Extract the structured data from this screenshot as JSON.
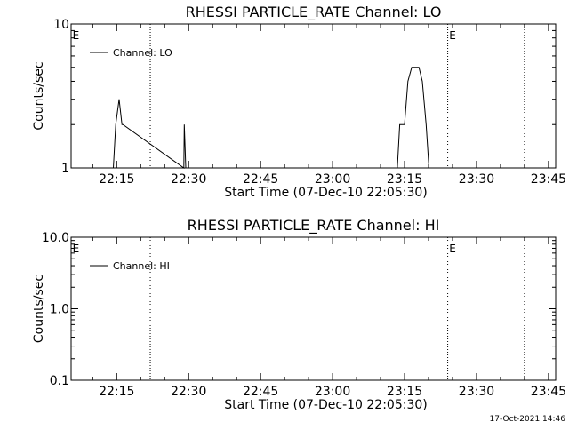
{
  "footer_timestamp": "17-Oct-2021 14:46",
  "chart_data": [
    {
      "type": "line",
      "title": "RHESSI PARTICLE_RATE Channel: LO",
      "xlabel": "Start Time (07-Dec-10 22:05:30)",
      "ylabel": "Counts/sec",
      "x_units": "minutes since 22:05:30",
      "xlim": [
        0,
        101
      ],
      "yscale": "log",
      "ylim": [
        1,
        10
      ],
      "y_tick_labels": [
        "1",
        "10"
      ],
      "x_ticks": [
        {
          "label": "22:15",
          "value": 9.5
        },
        {
          "label": "22:30",
          "value": 24.5
        },
        {
          "label": "22:45",
          "value": 39.5
        },
        {
          "label": "23:00",
          "value": 54.5
        },
        {
          "label": "23:15",
          "value": 69.5
        },
        {
          "label": "23:30",
          "value": 84.5
        },
        {
          "label": "23:45",
          "value": 99.5
        }
      ],
      "vlines": [
        16.5,
        78.5,
        94.5
      ],
      "markers": [
        {
          "label": "E",
          "x": 0.3
        },
        {
          "label": "E",
          "x": 78.8
        }
      ],
      "legend": {
        "label": "Channel: LO",
        "position": "top-left"
      },
      "grid": false,
      "series": [
        {
          "name": "Channel: LO",
          "points": [
            [
              8.8,
              1
            ],
            [
              9.3,
              2
            ],
            [
              10,
              3
            ],
            [
              10.6,
              2
            ],
            [
              10.8,
              2
            ],
            [
              23.5,
              1
            ],
            [
              23.6,
              2
            ],
            [
              23.9,
              1
            ],
            [
              68,
              1
            ],
            [
              68.5,
              2
            ],
            [
              69.5,
              2
            ],
            [
              70.2,
              4
            ],
            [
              71,
              5
            ],
            [
              72.5,
              5
            ],
            [
              73.2,
              4
            ],
            [
              74,
              2
            ],
            [
              74.6,
              1
            ]
          ]
        }
      ]
    },
    {
      "type": "line",
      "title": "RHESSI PARTICLE_RATE Channel: HI",
      "xlabel": "Start Time (07-Dec-10 22:05:30)",
      "ylabel": "Counts/sec",
      "x_units": "minutes since 22:05:30",
      "xlim": [
        0,
        101
      ],
      "yscale": "log",
      "ylim": [
        0.1,
        10
      ],
      "y_tick_labels": [
        "0.1",
        "1.0",
        "10.0"
      ],
      "x_ticks": [
        {
          "label": "22:15",
          "value": 9.5
        },
        {
          "label": "22:30",
          "value": 24.5
        },
        {
          "label": "22:45",
          "value": 39.5
        },
        {
          "label": "23:00",
          "value": 54.5
        },
        {
          "label": "23:15",
          "value": 69.5
        },
        {
          "label": "23:30",
          "value": 84.5
        },
        {
          "label": "23:45",
          "value": 99.5
        }
      ],
      "vlines": [
        16.5,
        78.5,
        94.5
      ],
      "markers": [
        {
          "label": "E",
          "x": 0.3
        },
        {
          "label": "E",
          "x": 78.8
        }
      ],
      "legend": {
        "label": "Channel: HI",
        "position": "top-left"
      },
      "grid": false,
      "series": [
        {
          "name": "Channel: HI",
          "points": []
        }
      ]
    }
  ]
}
